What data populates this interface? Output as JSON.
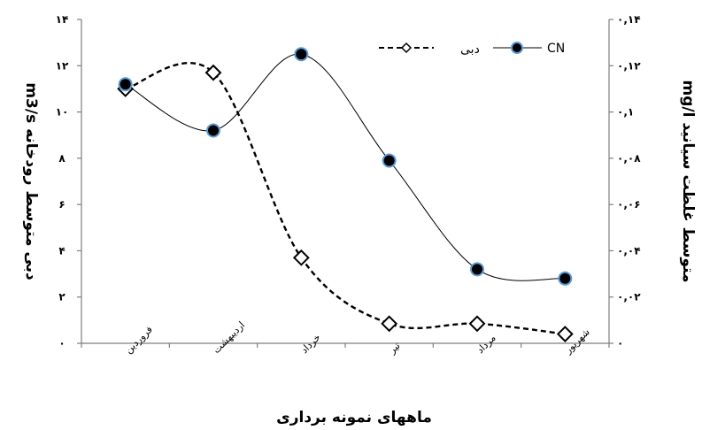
{
  "chart_data": {
    "type": "line",
    "categories": [
      "فروردین",
      "اردیبهشت",
      "خرداد",
      "تیر",
      "مرداد",
      "شهریور"
    ],
    "series": [
      {
        "name": "دبی",
        "axis": "left",
        "values": [
          11.0,
          11.7,
          3.7,
          0.85,
          0.85,
          0.4
        ],
        "style": "dashed",
        "marker": "diamond-open",
        "color": "#000000"
      },
      {
        "name": "CN",
        "axis": "right",
        "values": [
          0.112,
          0.092,
          0.125,
          0.079,
          0.032,
          0.028
        ],
        "style": "solid",
        "marker": "circle-filled",
        "color": "#000000",
        "marker_edge_color": "#5b9bd5"
      }
    ],
    "xlabel": "ماههای نمونه برداری",
    "ylabel_left": "دبی متوسط رودخانه m3/s",
    "ylabel_right": "متوسط غلظت سیانید mg/l",
    "ylim_left": [
      0,
      14
    ],
    "ylim_right": [
      0,
      0.14
    ],
    "yticks_left": [
      "۰",
      "۲",
      "۴",
      "۶",
      "۸",
      "۱۰",
      "۱۲",
      "۱۴"
    ],
    "yticks_right": [
      "۰",
      "۰,۰۲",
      "۰,۰۴",
      "۰,۰۶",
      "۰,۰۸",
      "۰,۱",
      "۰,۱۲",
      "۰,۱۴"
    ],
    "grid": false,
    "legend": "top-right"
  }
}
